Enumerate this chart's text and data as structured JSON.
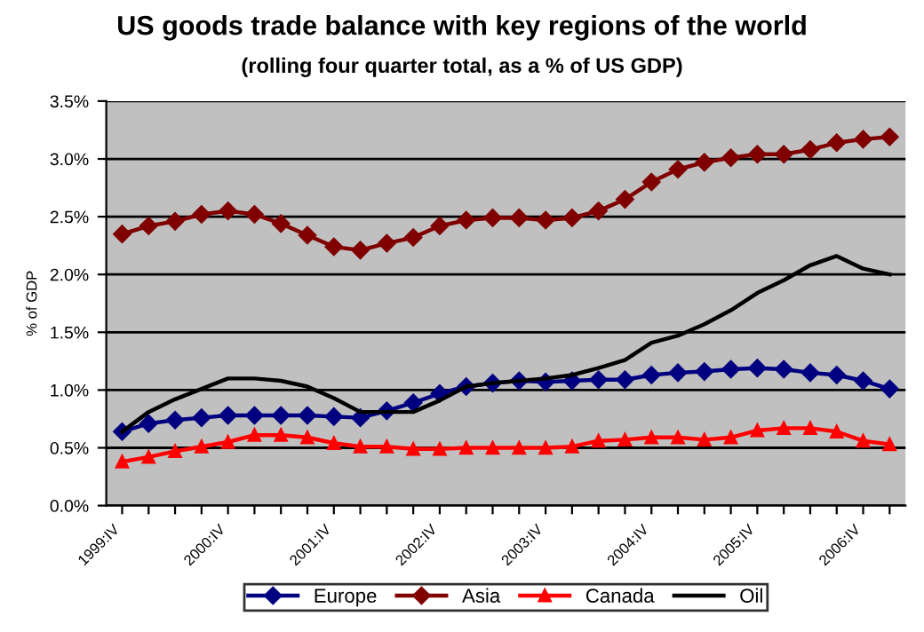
{
  "chart_data": {
    "type": "line",
    "title": "US goods trade balance with key regions of the world",
    "subtitle": "(rolling four quarter total, as a % of US GDP)",
    "ylabel": "% of GDP",
    "categories": [
      "1999:IV",
      null,
      null,
      null,
      "2000:IV",
      null,
      null,
      null,
      "2001:IV",
      null,
      null,
      null,
      "2002:IV",
      null,
      null,
      null,
      "2003:IV",
      null,
      null,
      null,
      "2004:IV",
      null,
      null,
      null,
      "2005:IV",
      null,
      null,
      null,
      "2006:IV",
      null
    ],
    "series": [
      {
        "name": "Europe",
        "color": "#000080",
        "marker": "diamond",
        "values": [
          0.64,
          0.71,
          0.74,
          0.76,
          0.78,
          0.78,
          0.78,
          0.78,
          0.77,
          0.76,
          0.82,
          0.89,
          0.97,
          1.03,
          1.06,
          1.08,
          1.07,
          1.08,
          1.09,
          1.09,
          1.13,
          1.15,
          1.16,
          1.18,
          1.19,
          1.18,
          1.15,
          1.13,
          1.08,
          1.01
        ]
      },
      {
        "name": "Asia",
        "color": "#800000",
        "marker": "diamond",
        "values": [
          2.35,
          2.42,
          2.46,
          2.52,
          2.55,
          2.52,
          2.44,
          2.34,
          2.24,
          2.21,
          2.27,
          2.32,
          2.42,
          2.47,
          2.49,
          2.49,
          2.47,
          2.49,
          2.55,
          2.65,
          2.8,
          2.91,
          2.97,
          3.01,
          3.04,
          3.04,
          3.08,
          3.14,
          3.17,
          3.19
        ]
      },
      {
        "name": "Canada",
        "color": "#ff0000",
        "marker": "triangle",
        "values": [
          0.38,
          0.42,
          0.47,
          0.51,
          0.55,
          0.61,
          0.61,
          0.59,
          0.54,
          0.51,
          0.51,
          0.49,
          0.49,
          0.5,
          0.5,
          0.5,
          0.5,
          0.51,
          0.56,
          0.57,
          0.59,
          0.59,
          0.57,
          0.59,
          0.65,
          0.67,
          0.67,
          0.64,
          0.56,
          0.53
        ]
      },
      {
        "name": "Oil",
        "color": "#000000",
        "marker": "none",
        "values": [
          0.64,
          0.81,
          0.92,
          1.01,
          1.1,
          1.1,
          1.08,
          1.03,
          0.93,
          0.81,
          0.81,
          0.81,
          0.91,
          1.03,
          1.06,
          1.08,
          1.1,
          1.13,
          1.19,
          1.26,
          1.41,
          1.47,
          1.57,
          1.69,
          1.84,
          1.95,
          2.08,
          2.16,
          2.05,
          2.0
        ]
      }
    ],
    "ylim": [
      0,
      3.5
    ],
    "yticks": [
      {
        "value": 0,
        "label": "0.0%"
      },
      {
        "value": 0.5,
        "label": "0.5%"
      },
      {
        "value": 1,
        "label": "1.0%"
      },
      {
        "value": 1.5,
        "label": "1.5%"
      },
      {
        "value": 2,
        "label": "2.0%"
      },
      {
        "value": 2.5,
        "label": "2.5%"
      },
      {
        "value": 3,
        "label": "3.0%"
      },
      {
        "value": 3.5,
        "label": "3.5%"
      }
    ],
    "grid": "y",
    "legend": "bottom"
  }
}
